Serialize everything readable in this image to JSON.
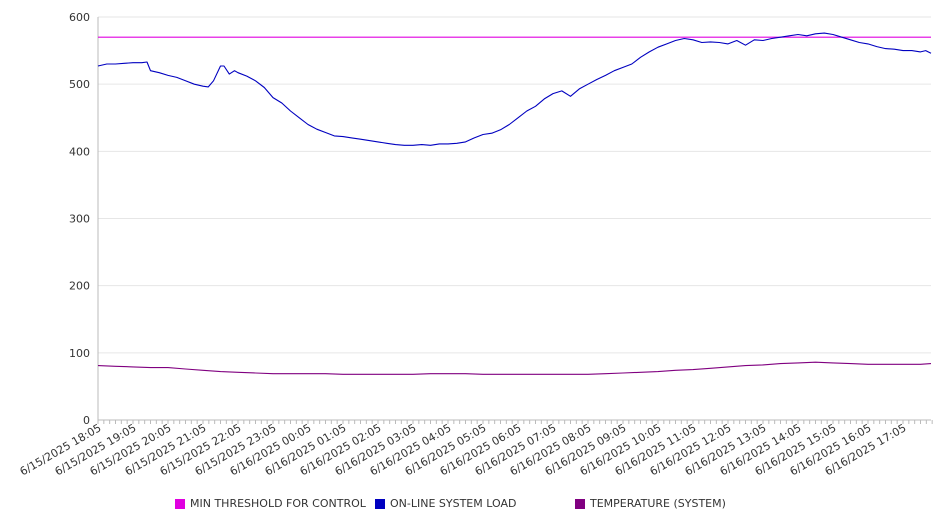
{
  "chart_data": {
    "type": "line",
    "ylim": [
      0,
      600
    ],
    "yticks": [
      0,
      100,
      200,
      300,
      400,
      500,
      600
    ],
    "grid": true,
    "legend_position": "bottom",
    "x_tick_labels": [
      "6/15/2025 18:05",
      "6/15/2025 19:05",
      "6/15/2025 20:05",
      "6/15/2025 21:05",
      "6/15/2025 22:05",
      "6/15/2025 23:05",
      "6/16/2025 00:05",
      "6/16/2025 01:05",
      "6/16/2025 02:05",
      "6/16/2025 03:05",
      "6/16/2025 04:05",
      "6/16/2025 05:05",
      "6/16/2025 06:05",
      "6/16/2025 07:05",
      "6/16/2025 08:05",
      "6/16/2025 09:05",
      "6/16/2025 10:05",
      "6/16/2025 11:05",
      "6/16/2025 12:05",
      "6/16/2025 13:05",
      "6/16/2025 14:05",
      "6/16/2025 15:05",
      "6/16/2025 16:05",
      "6/16/2025 17:05"
    ],
    "x_hours": [
      0,
      23.8
    ],
    "series": [
      {
        "name": "MIN THRESHOLD FOR CONTROL",
        "color": "#e000e0",
        "x": [
          0,
          23.8
        ],
        "y": [
          570,
          570
        ]
      },
      {
        "name": "ON-LINE SYSTEM LOAD",
        "color": "#0000c0",
        "x": [
          0,
          0.25,
          0.5,
          0.75,
          1.0,
          1.25,
          1.4,
          1.5,
          1.75,
          2.0,
          2.25,
          2.5,
          2.75,
          3.0,
          3.15,
          3.3,
          3.5,
          3.6,
          3.75,
          3.9,
          4.0,
          4.25,
          4.5,
          4.75,
          5.0,
          5.25,
          5.5,
          5.75,
          6.0,
          6.25,
          6.5,
          6.75,
          7.0,
          7.25,
          7.5,
          7.75,
          8.0,
          8.25,
          8.5,
          8.75,
          9.0,
          9.25,
          9.5,
          9.75,
          10.0,
          10.25,
          10.5,
          10.75,
          11.0,
          11.25,
          11.5,
          11.75,
          12.0,
          12.25,
          12.5,
          12.75,
          13.0,
          13.25,
          13.5,
          13.75,
          14.0,
          14.25,
          14.5,
          14.75,
          15.0,
          15.25,
          15.5,
          15.75,
          16.0,
          16.25,
          16.5,
          16.75,
          17.0,
          17.25,
          17.5,
          17.75,
          18.0,
          18.25,
          18.5,
          18.75,
          19.0,
          19.25,
          19.5,
          19.75,
          20.0,
          20.25,
          20.5,
          20.75,
          21.0,
          21.25,
          21.5,
          21.75,
          22.0,
          22.25,
          22.5,
          22.75,
          23.0,
          23.25,
          23.5,
          23.65,
          23.8
        ],
        "y": [
          527,
          530,
          530,
          531,
          532,
          532,
          533,
          520,
          517,
          513,
          510,
          505,
          500,
          497,
          496,
          505,
          527,
          527,
          515,
          520,
          517,
          512,
          505,
          495,
          480,
          472,
          460,
          450,
          440,
          433,
          428,
          423,
          422,
          420,
          418,
          416,
          414,
          412,
          410,
          409,
          409,
          410,
          409,
          411,
          411,
          412,
          414,
          420,
          425,
          427,
          432,
          440,
          450,
          460,
          467,
          478,
          486,
          490,
          482,
          493,
          500,
          507,
          513,
          520,
          525,
          530,
          540,
          548,
          555,
          560,
          565,
          568,
          566,
          562,
          563,
          562,
          560,
          565,
          558,
          566,
          565,
          568,
          570,
          572,
          574,
          572,
          575,
          576,
          574,
          570,
          566,
          562,
          560,
          556,
          553,
          552,
          550,
          550,
          548,
          550,
          546
        ]
      },
      {
        "name": "TEMPERATURE (SYSTEM)",
        "color": "#800080",
        "x": [
          0,
          0.5,
          1,
          1.5,
          2,
          2.5,
          3,
          3.5,
          4,
          4.5,
          5,
          5.5,
          6,
          6.5,
          7,
          7.5,
          8,
          8.5,
          9,
          9.5,
          10,
          10.5,
          11,
          11.5,
          12,
          12.5,
          13,
          13.5,
          14,
          14.5,
          15,
          15.5,
          16,
          16.5,
          17,
          17.5,
          18,
          18.5,
          19,
          19.5,
          20,
          20.5,
          21,
          21.5,
          22,
          22.5,
          23,
          23.5,
          23.8
        ],
        "y": [
          81,
          80,
          79,
          78,
          78,
          76,
          74,
          72,
          71,
          70,
          69,
          69,
          69,
          69,
          68,
          68,
          68,
          68,
          68,
          69,
          69,
          69,
          68,
          68,
          68,
          68,
          68,
          68,
          68,
          69,
          70,
          71,
          72,
          74,
          75,
          77,
          79,
          81,
          82,
          84,
          85,
          86,
          85,
          84,
          83,
          83,
          83,
          83,
          84
        ]
      }
    ]
  }
}
